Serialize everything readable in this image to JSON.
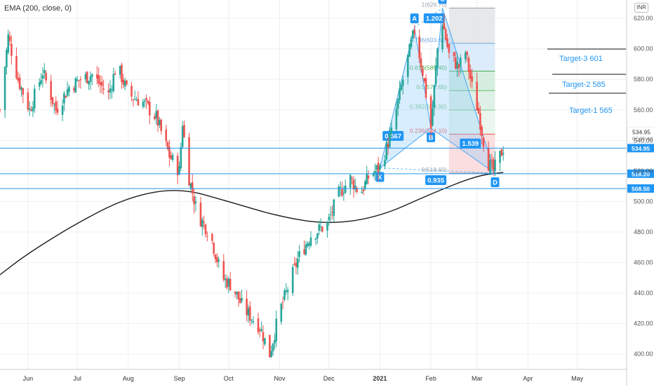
{
  "legend": {
    "indicator": "EMA (200, close, 0)"
  },
  "currency": "INR",
  "chart_data": {
    "type": "candlestick",
    "ylim": [
      390,
      632
    ],
    "y_ticks": [
      400,
      420,
      440,
      460,
      480,
      500,
      520,
      540,
      560,
      580,
      600,
      620
    ],
    "x_range": [
      "2020-05-15",
      "2021-05-31"
    ],
    "x_ticks": [
      {
        "label": "Jun",
        "date": "2020-06-01",
        "bold": false
      },
      {
        "label": "Jul",
        "date": "2020-07-01",
        "bold": false
      },
      {
        "label": "Aug",
        "date": "2020-08-01",
        "bold": false
      },
      {
        "label": "Sep",
        "date": "2020-09-01",
        "bold": false
      },
      {
        "label": "Oct",
        "date": "2020-10-01",
        "bold": false
      },
      {
        "label": "Nov",
        "date": "2020-11-01",
        "bold": false
      },
      {
        "label": "Dec",
        "date": "2020-12-01",
        "bold": false
      },
      {
        "label": "2021",
        "date": "2021-01-01",
        "bold": true
      },
      {
        "label": "Feb",
        "date": "2021-02-01",
        "bold": false
      },
      {
        "label": "Mar",
        "date": "2021-03-01",
        "bold": false
      },
      {
        "label": "Apr",
        "date": "2021-04-01",
        "bold": false
      },
      {
        "label": "May",
        "date": "2021-05-01",
        "bold": false
      }
    ],
    "anchors": [
      [
        "2020-05-15",
        560
      ],
      [
        "2020-05-20",
        608
      ],
      [
        "2020-05-26",
        580
      ],
      [
        "2020-06-02",
        560
      ],
      [
        "2020-06-10",
        585
      ],
      [
        "2020-06-18",
        560
      ],
      [
        "2020-06-26",
        575
      ],
      [
        "2020-07-03",
        580
      ],
      [
        "2020-07-10",
        583
      ],
      [
        "2020-07-20",
        570
      ],
      [
        "2020-07-25",
        590
      ],
      [
        "2020-08-01",
        570
      ],
      [
        "2020-08-10",
        565
      ],
      [
        "2020-08-18",
        555
      ],
      [
        "2020-08-26",
        530
      ],
      [
        "2020-09-01",
        520
      ],
      [
        "2020-09-03",
        552
      ],
      [
        "2020-09-06",
        520
      ],
      [
        "2020-09-12",
        492
      ],
      [
        "2020-09-20",
        478
      ],
      [
        "2020-09-27",
        450
      ],
      [
        "2020-10-03",
        445
      ],
      [
        "2020-10-10",
        430
      ],
      [
        "2020-10-20",
        418
      ],
      [
        "2020-10-26",
        400
      ],
      [
        "2020-11-01",
        428
      ],
      [
        "2020-11-05",
        440
      ],
      [
        "2020-11-12",
        462
      ],
      [
        "2020-11-20",
        478
      ],
      [
        "2020-11-30",
        485
      ],
      [
        "2020-12-07",
        505
      ],
      [
        "2020-12-14",
        515
      ],
      [
        "2020-12-20",
        505
      ],
      [
        "2020-12-26",
        518
      ],
      [
        "2021-01-01",
        522
      ],
      [
        "2021-01-08",
        545
      ],
      [
        "2021-01-15",
        580
      ],
      [
        "2021-01-22",
        612
      ],
      [
        "2021-01-27",
        585
      ],
      [
        "2021-02-01",
        548
      ],
      [
        "2021-02-05",
        600
      ],
      [
        "2021-02-08",
        618
      ],
      [
        "2021-02-12",
        596
      ],
      [
        "2021-02-18",
        588
      ],
      [
        "2021-02-22",
        598
      ],
      [
        "2021-02-26",
        575
      ],
      [
        "2021-03-02",
        558
      ],
      [
        "2021-03-05",
        540
      ],
      [
        "2021-03-08",
        525
      ],
      [
        "2021-03-11",
        520
      ],
      [
        "2021-03-14",
        527
      ],
      [
        "2021-03-17",
        535
      ]
    ],
    "ema200": [
      [
        "2020-05-15",
        452
      ],
      [
        "2020-06-01",
        466
      ],
      [
        "2020-07-01",
        486
      ],
      [
        "2020-08-01",
        503
      ],
      [
        "2020-09-01",
        509
      ],
      [
        "2020-10-01",
        500
      ],
      [
        "2020-11-01",
        490
      ],
      [
        "2020-12-01",
        485
      ],
      [
        "2021-01-01",
        490
      ],
      [
        "2021-02-01",
        505
      ],
      [
        "2021-03-01",
        517
      ],
      [
        "2021-03-17",
        519
      ]
    ],
    "price_lines": [
      {
        "value": 534.95,
        "label": "534.95"
      },
      {
        "value": 518.2,
        "label": "518.20"
      },
      {
        "value": 508.5,
        "label": "508.50"
      }
    ],
    "last_price": {
      "value": 534.95,
      "label": "534.95",
      "countdown": "02:30:42"
    },
    "harmonic": {
      "points": [
        {
          "label": "X",
          "date": "2021-01-01",
          "value": 522
        },
        {
          "label": "A",
          "date": "2021-01-22",
          "value": 614
        },
        {
          "label": "B",
          "date": "2021-02-01",
          "value": 548
        },
        {
          "label": "C",
          "date": "2021-02-08",
          "value": 626.7
        },
        {
          "label": "D",
          "date": "2021-03-12",
          "value": 518.6
        }
      ],
      "ratios": [
        {
          "label": "1.202",
          "date": "2021-02-03",
          "value": 620
        },
        {
          "label": "0.567",
          "date": "2021-01-09",
          "value": 543
        },
        {
          "label": "1.539",
          "date": "2021-02-25",
          "value": 538
        },
        {
          "label": "0.935",
          "date": "2021-02-04",
          "value": 514
        }
      ]
    },
    "fib": {
      "start_date": "2021-02-12",
      "end_date": "2021-03-12",
      "levels": [
        {
          "ratio": "1",
          "value": 626.7
        },
        {
          "ratio": "0.786",
          "value": 603.6
        },
        {
          "ratio": "0.618",
          "value": 585.4
        },
        {
          "ratio": "0.5",
          "value": 572.65
        },
        {
          "ratio": "0.382",
          "value": 559.9
        },
        {
          "ratio": "0.236",
          "value": 544.1
        },
        {
          "ratio": "0",
          "value": 518.6
        }
      ]
    },
    "targets": [
      {
        "label": "Target-3 601",
        "value": 601
      },
      {
        "label": "Target-2 585",
        "value": 585
      },
      {
        "label": "Target-1 565",
        "value": 565
      }
    ]
  }
}
